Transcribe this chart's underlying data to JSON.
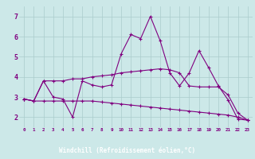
{
  "xlabel": "Windchill (Refroidissement éolien,°C)",
  "x": [
    0,
    1,
    2,
    3,
    4,
    5,
    6,
    7,
    8,
    9,
    10,
    11,
    12,
    13,
    14,
    15,
    16,
    17,
    18,
    19,
    20,
    21,
    22,
    23
  ],
  "line1": [
    2.9,
    2.8,
    3.8,
    3.0,
    2.9,
    2.0,
    3.8,
    3.6,
    3.5,
    3.6,
    5.15,
    6.1,
    5.9,
    7.0,
    5.8,
    4.2,
    3.55,
    4.2,
    5.3,
    4.45,
    3.55,
    2.85,
    1.9,
    1.85
  ],
  "line2": [
    2.9,
    2.8,
    3.8,
    3.8,
    3.8,
    3.9,
    3.9,
    4.0,
    4.05,
    4.1,
    4.2,
    4.25,
    4.3,
    4.35,
    4.4,
    4.35,
    4.2,
    3.55,
    3.5,
    3.5,
    3.5,
    3.1,
    2.2,
    1.85
  ],
  "line3": [
    2.9,
    2.8,
    2.8,
    2.8,
    2.8,
    2.8,
    2.8,
    2.8,
    2.75,
    2.7,
    2.65,
    2.6,
    2.55,
    2.5,
    2.45,
    2.4,
    2.35,
    2.3,
    2.25,
    2.2,
    2.15,
    2.1,
    2.0,
    1.85
  ],
  "line_color": "#800080",
  "bg_color": "#cce8e8",
  "grid_color": "#aacccc",
  "footer_color": "#400060",
  "text_color": "#800080",
  "ylim": [
    1.5,
    7.5
  ],
  "xlim": [
    -0.5,
    23.5
  ],
  "yticks": [
    2,
    3,
    4,
    5,
    6,
    7
  ],
  "xticks": [
    0,
    1,
    2,
    3,
    4,
    5,
    6,
    7,
    8,
    9,
    10,
    11,
    12,
    13,
    14,
    15,
    16,
    17,
    18,
    19,
    20,
    21,
    22,
    23
  ]
}
